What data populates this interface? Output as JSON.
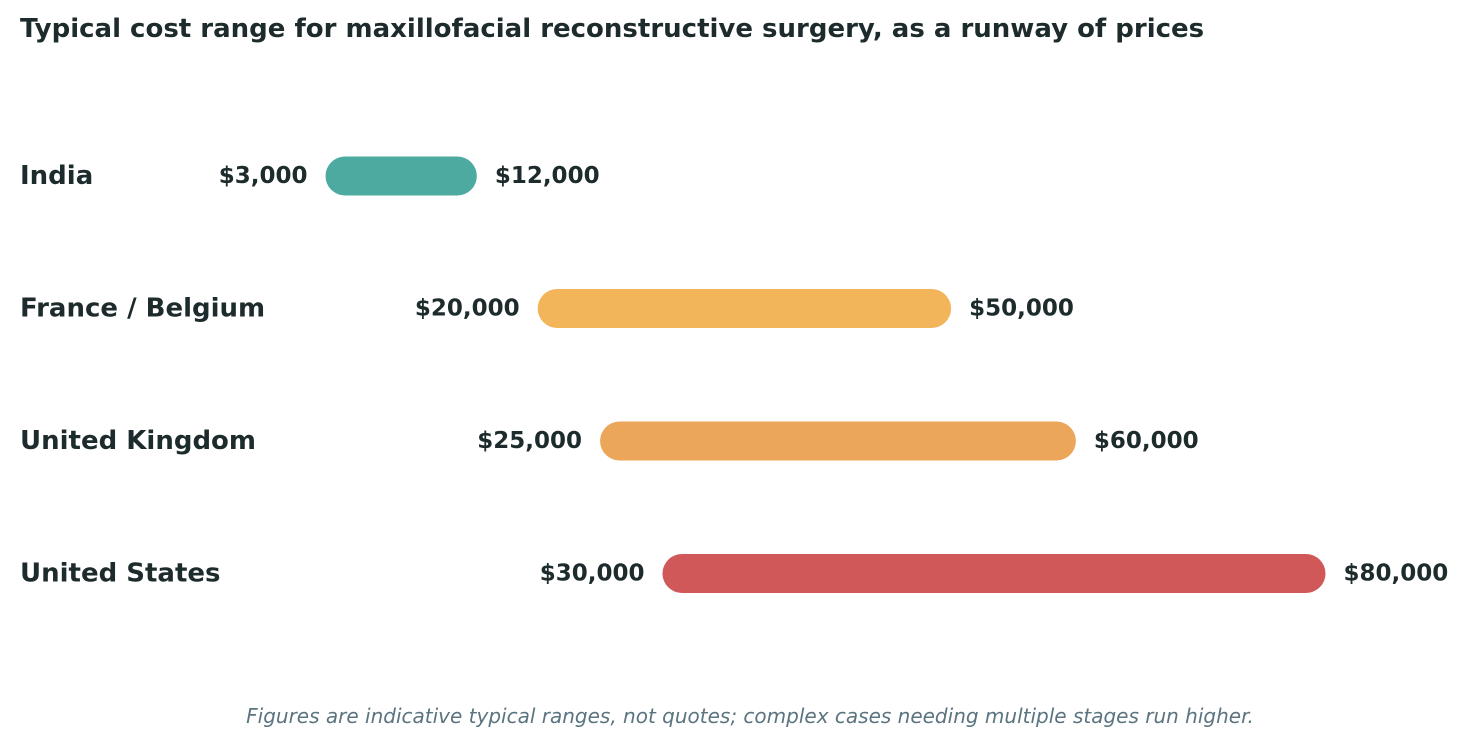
{
  "chart_data": {
    "type": "range-bar",
    "title": "Typical cost range for maxillofacial reconstructive surgery, as a runway of prices",
    "footnote": "Figures are indicative typical ranges, not quotes; complex cases needing multiple stages run higher.",
    "x_range": [
      3000,
      80000
    ],
    "grid": false,
    "rows": [
      {
        "category": "India",
        "low": 3000,
        "high": 12000,
        "low_label": "$3,000",
        "high_label": "$12,000",
        "color": "#4daaa0"
      },
      {
        "category": "France / Belgium",
        "low": 20000,
        "high": 50000,
        "low_label": "$20,000",
        "high_label": "$50,000",
        "color": "#f3b55a"
      },
      {
        "category": "United Kingdom",
        "low": 25000,
        "high": 60000,
        "low_label": "$25,000",
        "high_label": "$60,000",
        "color": "#eca659"
      },
      {
        "category": "United States",
        "low": 30000,
        "high": 80000,
        "low_label": "$30,000",
        "high_label": "$80,000",
        "color": "#d05859"
      }
    ]
  }
}
